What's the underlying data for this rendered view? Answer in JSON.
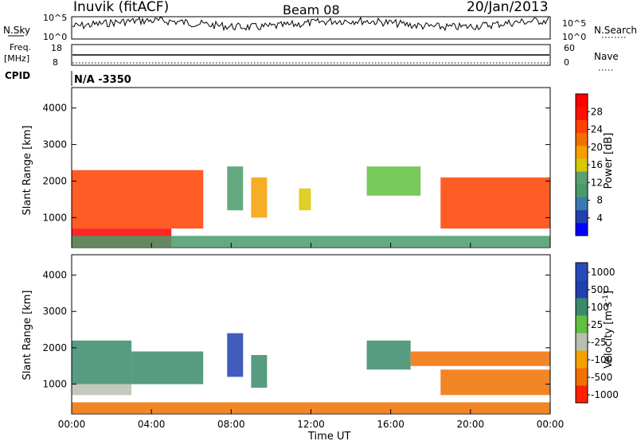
{
  "header": {
    "station": "Inuvik (fitACF)",
    "beam": "Beam 08",
    "date": "20/Jan/2013"
  },
  "top_panels": {
    "nsky": {
      "label": "N.Sky",
      "left_ticks": [
        "10^5",
        "10^0"
      ],
      "right_ticks": [
        "10^5",
        "10^0"
      ],
      "right_label": "N.Search"
    },
    "freq": {
      "label_line1": "Freq.",
      "label_line2": "[MHz]",
      "left_ticks": [
        "18",
        "8"
      ],
      "right_ticks": [
        "60",
        "0"
      ],
      "right_label": "Nave"
    },
    "cpid": {
      "label": "CPID",
      "value": "N/A -3350"
    }
  },
  "colors": {
    "scale": [
      "#0000ff",
      "#2040b0",
      "#3a7ab0",
      "#4a9a6a",
      "#60c040",
      "#b8c8b0",
      "#f5a000",
      "#f07000",
      "#ff4000",
      "#ff0000"
    ]
  },
  "chart_data": [
    {
      "type": "heatmap",
      "panel": "power",
      "ylabel": "Slant Range [km]",
      "yticks": [
        "1000",
        "2000",
        "3000",
        "4000"
      ],
      "ylim": [
        180,
        4560
      ],
      "colorbar": {
        "label": "Power [dB]",
        "ticks": [
          "4",
          "8",
          "12",
          "16",
          "20",
          "24",
          "28"
        ],
        "range": [
          0,
          32
        ]
      },
      "regions": [
        {
          "t": [
            0.0,
            6.6
          ],
          "r": [
            700,
            2300
          ],
          "value": 28
        },
        {
          "t": [
            0.0,
            5.0
          ],
          "r": [
            200,
            700
          ],
          "value": 30
        },
        {
          "t": [
            7.8,
            8.6
          ],
          "r": [
            1200,
            2400
          ],
          "value": 12
        },
        {
          "t": [
            9.0,
            9.8
          ],
          "r": [
            1000,
            2100
          ],
          "value": 22
        },
        {
          "t": [
            11.4,
            12.0
          ],
          "r": [
            1200,
            1800
          ],
          "value": 18
        },
        {
          "t": [
            14.8,
            17.5
          ],
          "r": [
            1600,
            2400
          ],
          "value": 14
        },
        {
          "t": [
            18.5,
            24.0
          ],
          "r": [
            700,
            2100
          ],
          "value": 27
        },
        {
          "t": [
            0.0,
            24.0
          ],
          "r": [
            200,
            500
          ],
          "value": 10
        }
      ]
    },
    {
      "type": "heatmap",
      "panel": "velocity",
      "ylabel": "Slant Range [km]",
      "yticks": [
        "1000",
        "2000",
        "3000",
        "4000"
      ],
      "ylim": [
        180,
        4560
      ],
      "xlabel": "Time UT",
      "xticks": [
        "00:00",
        "04:00",
        "08:00",
        "12:00",
        "16:00",
        "20:00",
        "00:00"
      ],
      "xlim": [
        0,
        24
      ],
      "colorbar": {
        "label": "Velocity [m s-1]",
        "ticks": [
          "1000",
          "500",
          "100",
          "25",
          "-25",
          "-100",
          "-500",
          "-1000"
        ]
      },
      "regions": [
        {
          "t": [
            0.0,
            3.0
          ],
          "r": [
            1000,
            2200
          ],
          "value": 200
        },
        {
          "t": [
            3.0,
            6.6
          ],
          "r": [
            1000,
            1900
          ],
          "value": 150
        },
        {
          "t": [
            7.8,
            8.6
          ],
          "r": [
            1200,
            2400
          ],
          "value": 700
        },
        {
          "t": [
            9.0,
            9.8
          ],
          "r": [
            900,
            1800
          ],
          "value": 300
        },
        {
          "t": [
            0.0,
            3.0
          ],
          "r": [
            700,
            1000
          ],
          "value": -20
        },
        {
          "t": [
            14.8,
            17.0
          ],
          "r": [
            1400,
            2200
          ],
          "value": 100
        },
        {
          "t": [
            17.0,
            24.0
          ],
          "r": [
            1500,
            1900
          ],
          "value": -200
        },
        {
          "t": [
            18.5,
            24.0
          ],
          "r": [
            700,
            1400
          ],
          "value": -300
        },
        {
          "t": [
            0.0,
            24.0
          ],
          "r": [
            200,
            500
          ],
          "value": -120
        }
      ]
    }
  ]
}
